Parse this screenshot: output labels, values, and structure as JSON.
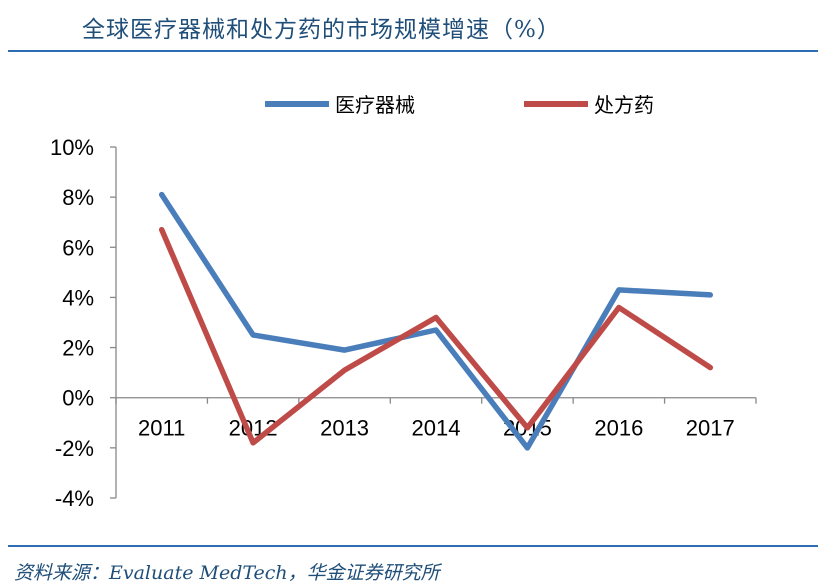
{
  "header": {
    "title": "全球医疗器械和处方药的市场规模增速（%）"
  },
  "footer": {
    "source": "资料来源：Evaluate MedTech，华金证券研究所"
  },
  "chart_data": {
    "type": "line",
    "title": "全球医疗器械和处方药的市场规模增速（%）",
    "xlabel": "",
    "ylabel": "",
    "categories": [
      "2011",
      "2012",
      "2013",
      "2014",
      "2015",
      "2016",
      "2017"
    ],
    "ylim": [
      -4,
      10
    ],
    "yticks": [
      10,
      8,
      6,
      4,
      2,
      0,
      -2,
      -4
    ],
    "ytick_labels": [
      "10%",
      "8%",
      "6%",
      "4%",
      "2%",
      "0%",
      "-2%",
      "-4%"
    ],
    "grid": false,
    "legend_position": "top",
    "series": [
      {
        "name": "医疗器械",
        "color": "#4a7ebb",
        "values": [
          8.1,
          2.5,
          1.9,
          2.7,
          -2.0,
          4.3,
          4.1
        ]
      },
      {
        "name": "处方药",
        "color": "#be4b48",
        "values": [
          6.7,
          -1.8,
          1.1,
          3.2,
          -1.2,
          3.6,
          1.2
        ]
      }
    ]
  }
}
